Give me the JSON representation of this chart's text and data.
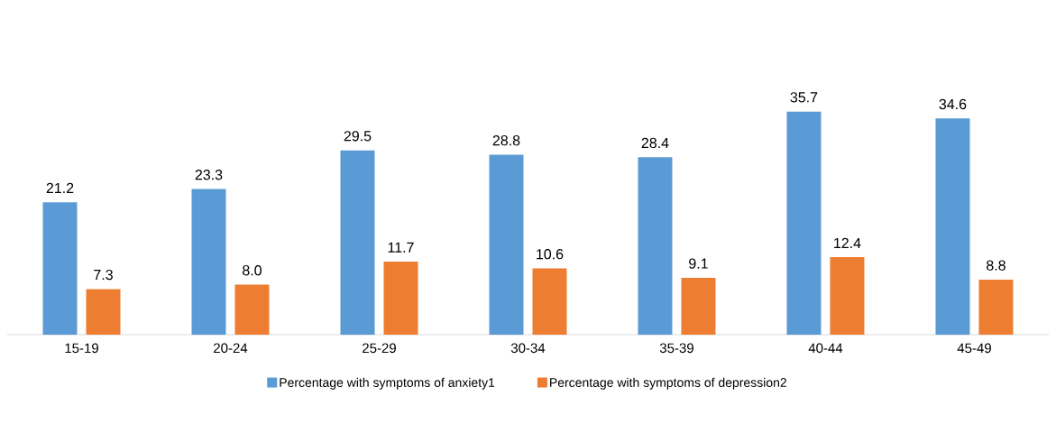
{
  "chart_data": {
    "type": "bar",
    "categories": [
      "15-19",
      "20-24",
      "25-29",
      "30-34",
      "35-39",
      "40-44",
      "45-49"
    ],
    "series": [
      {
        "name": "Percentage with symptoms of anxiety1",
        "color": "#5b9bd5",
        "values": [
          21.2,
          23.3,
          29.5,
          28.8,
          28.4,
          35.7,
          34.6
        ],
        "value_labels": [
          "21.2",
          "23.3",
          "29.5",
          "28.8",
          "28.4",
          "35.7",
          "34.6"
        ]
      },
      {
        "name": "Percentage with symptoms of depression2",
        "color": "#ed7d31",
        "values": [
          7.3,
          8.0,
          11.7,
          10.6,
          9.1,
          12.4,
          8.8
        ],
        "value_labels": [
          "7.3",
          "8.0",
          "11.7",
          "10.6",
          "9.1",
          "12.4",
          "8.8"
        ]
      }
    ],
    "legend": "bottom",
    "tick_labels": "x"
  }
}
